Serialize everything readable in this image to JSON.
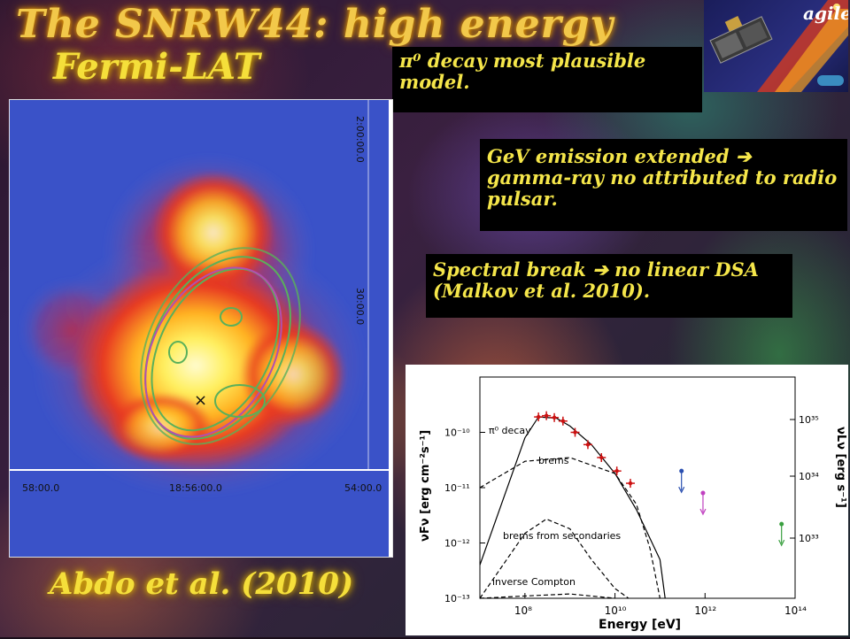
{
  "slide": {
    "title": "The SNRW44: high energy",
    "subtitle": "Fermi-LAT",
    "citation": "Abdo et al. (2010)",
    "notes": [
      "π⁰ decay most plausible model.",
      "GeV emission extended ➔ gamma-ray no attributed to radio pulsar.",
      "Spectral break ➔ no linear DSA (Malkov et al. 2010)."
    ],
    "logo_text": "agile"
  },
  "map": {
    "ra_ticks": [
      "58:00.0",
      "18:56:00.0",
      "54:00.0"
    ],
    "dec_ticks": [
      "2:00:00.0",
      "30:00.0"
    ],
    "marker": "×"
  },
  "chart_data": {
    "type": "line",
    "xlabel": "Energy [eV]",
    "ylabel_left": "νFν [erg cm⁻²s⁻¹]",
    "ylabel_right": "νLν [erg s⁻¹]",
    "x_scale": "log",
    "y_scale": "log",
    "xlim": [
      10000000.0,
      100000000000000.0
    ],
    "ylim": [
      1e-13,
      1e-09
    ],
    "x_ticks": [
      "10⁸",
      "10¹⁰",
      "10¹²",
      "10¹⁴"
    ],
    "y_ticks_left": [
      "10⁻¹⁰",
      "10⁻¹¹",
      "10⁻¹²",
      "10⁻¹³"
    ],
    "y_ticks_right": [
      "10³⁵",
      "10³⁴",
      "10³³"
    ],
    "grid": false,
    "series": [
      {
        "name": "π⁰ decay",
        "style": "solid",
        "color": "#000000",
        "x": [
          10000000.0,
          100000000.0,
          200000000.0,
          500000000.0,
          1000000000.0,
          3000000000.0,
          10000000000.0,
          30000000000.0,
          100000000000.0,
          130000000000.0
        ],
        "y": [
          4e-13,
          8e-11,
          1.9e-10,
          1.8e-10,
          1.3e-10,
          6e-11,
          1.8e-11,
          4e-12,
          5e-13,
          1e-13
        ]
      },
      {
        "name": "brems",
        "style": "dashed",
        "color": "#000000",
        "x": [
          10000000.0,
          100000000.0,
          1000000000.0,
          10000000000.0,
          30000000000.0,
          60000000000.0,
          100000000000.0
        ],
        "y": [
          1e-11,
          3e-11,
          3.5e-11,
          1.8e-11,
          5e-12,
          8e-13,
          1e-13
        ]
      },
      {
        "name": "brems from secondaries",
        "style": "dashed",
        "color": "#000000",
        "x": [
          10000000.0,
          100000000.0,
          300000000.0,
          1000000000.0,
          3000000000.0,
          10000000000.0,
          20000000000.0
        ],
        "y": [
          1e-13,
          1.5e-12,
          2.7e-12,
          1.8e-12,
          5e-13,
          1.5e-13,
          1e-13
        ]
      },
      {
        "name": "inverse Compton",
        "style": "dashed",
        "color": "#000000",
        "x": [
          10000000.0,
          100000000.0,
          1000000000.0,
          10000000000.0
        ],
        "y": [
          1e-13,
          1.1e-13,
          1.2e-13,
          1e-13
        ]
      }
    ],
    "points": [
      {
        "x": 200000000.0,
        "y": 1.9e-10,
        "color": "#cc1111"
      },
      {
        "x": 300000000.0,
        "y": 2e-10,
        "color": "#cc1111"
      },
      {
        "x": 450000000.0,
        "y": 1.85e-10,
        "color": "#cc1111"
      },
      {
        "x": 700000000.0,
        "y": 1.6e-10,
        "color": "#cc1111"
      },
      {
        "x": 1300000000.0,
        "y": 1e-10,
        "color": "#cc1111"
      },
      {
        "x": 2500000000.0,
        "y": 6e-11,
        "color": "#cc1111"
      },
      {
        "x": 5000000000.0,
        "y": 3.5e-11,
        "color": "#cc1111"
      },
      {
        "x": 11000000000.0,
        "y": 2e-11,
        "color": "#cc1111"
      },
      {
        "x": 22000000000.0,
        "y": 1.2e-11,
        "color": "#cc1111"
      }
    ],
    "upper_limits": [
      {
        "x": 300000000000.0,
        "y": 2e-11,
        "color": "#2a4fb0"
      },
      {
        "x": 900000000000.0,
        "y": 8e-12,
        "color": "#c040c0"
      },
      {
        "x": 50000000000000.0,
        "y": 2.2e-12,
        "color": "#3aa040"
      }
    ]
  }
}
